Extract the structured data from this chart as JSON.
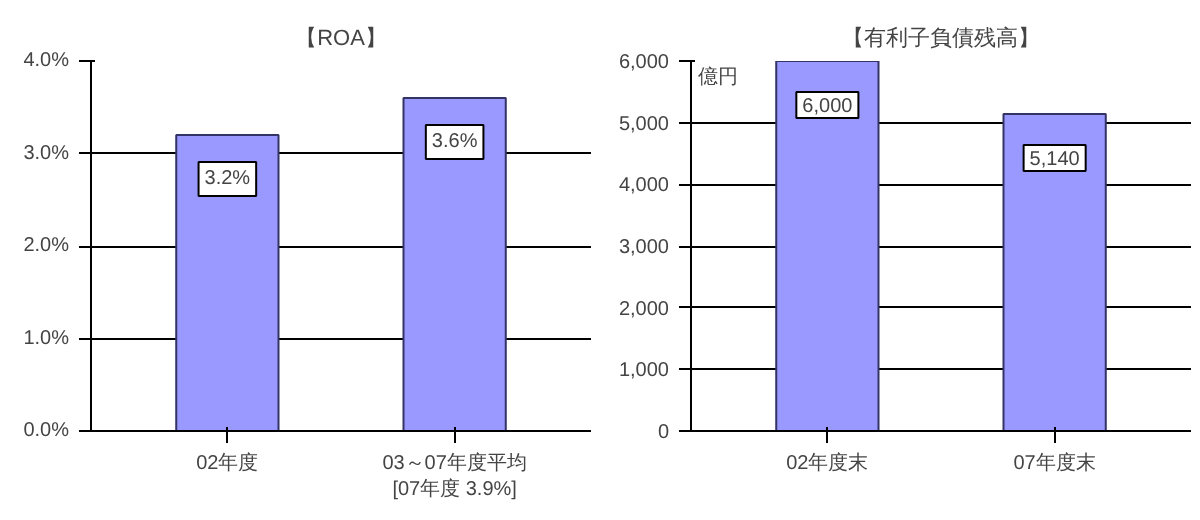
{
  "chart_data": [
    {
      "type": "bar",
      "title": "【ROA】",
      "categories": [
        "02年度",
        "03～07年度平均"
      ],
      "values": [
        3.2,
        3.6
      ],
      "color": "#9999ff",
      "value_labels": [
        "3.2%",
        "3.6%"
      ],
      "ylim": [
        0,
        4
      ],
      "yticks": [
        {
          "value": 0,
          "label": "0.0%"
        },
        {
          "value": 1,
          "label": "1.0%"
        },
        {
          "value": 2,
          "label": "2.0%"
        },
        {
          "value": 3,
          "label": "3.0%"
        },
        {
          "value": 4,
          "label": "4.0%"
        }
      ],
      "grid": "y",
      "annotations": [
        "[07年度 3.9%]"
      ]
    },
    {
      "type": "bar",
      "title": "【有利子負債残高】",
      "ylabel": "億円",
      "categories": [
        "02年度末",
        "07年度末"
      ],
      "values": [
        6000,
        5140
      ],
      "color": "#9999ff",
      "value_labels": [
        "6,000",
        "5,140"
      ],
      "ylim": [
        0,
        6000
      ],
      "yticks": [
        0,
        {
          "value": 1000,
          "label": "1,000"
        },
        {
          "value": 2000,
          "label": "2,000"
        },
        {
          "value": 3000,
          "label": "3,000"
        },
        {
          "value": 4000,
          "label": "4,000"
        },
        {
          "value": 5000,
          "label": "5,000"
        },
        {
          "value": 6000,
          "label": "6,000"
        }
      ],
      "grid": "y"
    }
  ]
}
